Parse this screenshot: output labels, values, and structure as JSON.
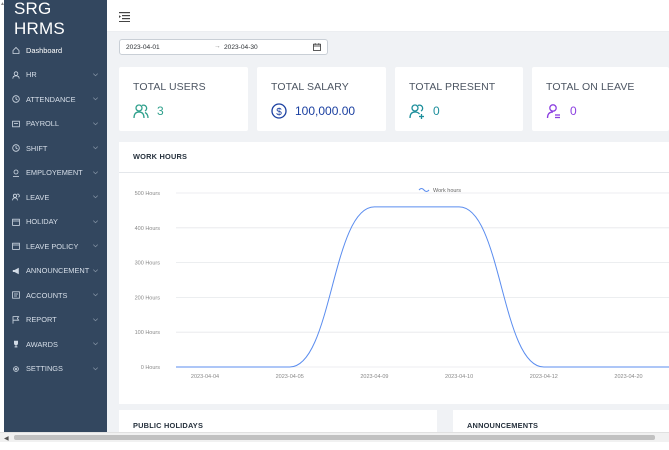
{
  "app": {
    "brand": "SRG HRMS"
  },
  "sidebar": {
    "items": [
      {
        "label": "Dashboard",
        "icon": "home-icon"
      },
      {
        "label": "HR",
        "icon": "user-icon"
      },
      {
        "label": "ATTENDANCE",
        "icon": "clock-icon"
      },
      {
        "label": "PAYROLL",
        "icon": "payroll-icon"
      },
      {
        "label": "SHIFT",
        "icon": "clock-icon"
      },
      {
        "label": "EMPLOYEMENT",
        "icon": "employee-icon"
      },
      {
        "label": "LEAVE",
        "icon": "users-icon"
      },
      {
        "label": "HOLIDAY",
        "icon": "calendar-icon"
      },
      {
        "label": "LEAVE POLICY",
        "icon": "calendar-icon"
      },
      {
        "label": "ANNOUNCEMENT",
        "icon": "megaphone-icon"
      },
      {
        "label": "ACCOUNTS",
        "icon": "accounts-icon"
      },
      {
        "label": "REPORT",
        "icon": "flag-icon"
      },
      {
        "label": "AWARDS",
        "icon": "trophy-icon"
      },
      {
        "label": "SETTINGS",
        "icon": "gear-icon"
      }
    ]
  },
  "filters": {
    "start_date": "2023-04-01",
    "separator": "→",
    "end_date": "2023-04-30"
  },
  "cards": [
    {
      "label": "TOTAL USERS",
      "value": "3",
      "icon": "users-icon",
      "color": "#2fa08c"
    },
    {
      "label": "TOTAL SALARY",
      "value": "100,000.00",
      "icon": "dollar-circle-icon",
      "color": "#1a3fa0"
    },
    {
      "label": "TOTAL PRESENT",
      "value": "0",
      "icon": "user-check-icon",
      "color": "#1c8e9b"
    },
    {
      "label": "TOTAL ON LEAVE",
      "value": "0",
      "icon": "user-minus-icon",
      "color": "#8b3fe0"
    }
  ],
  "work_hours": {
    "title": "WORK HOURS"
  },
  "chart_data": {
    "type": "line",
    "x": [
      "2023-04-04",
      "2023-04-05",
      "2023-04-09",
      "2023-04-10",
      "2023-04-12",
      "2023-04-20"
    ],
    "series": [
      {
        "name": "Work hours",
        "values": [
          0,
          0,
          460,
          460,
          0,
          0
        ],
        "color": "#5b8def"
      }
    ],
    "y_ticks": [
      "0 Hours",
      "100 Hours",
      "200 Hours",
      "300 Hours",
      "400 Hours",
      "500 Hours"
    ],
    "ylim": [
      0,
      500
    ],
    "grid": true,
    "legend": "top-center",
    "smooth": true
  },
  "bottom": {
    "public_holidays": "PUBLIC HOLIDAYS",
    "announcements": "ANNOUNCEMENTS"
  },
  "colors": {
    "sidebar": "#33475f",
    "content_bg": "#f0f2f5",
    "line": "#5b8def"
  }
}
